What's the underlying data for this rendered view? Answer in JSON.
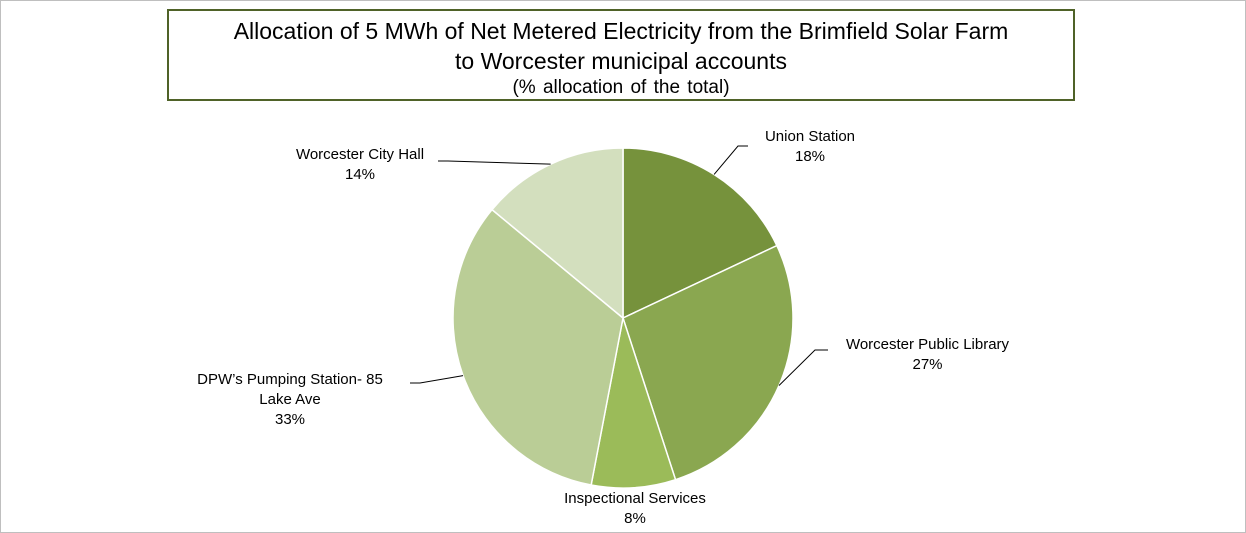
{
  "chart_data": {
    "type": "pie",
    "title_lines": [
      "Allocation of 5 MWh of Net Metered Electricity from the Brimfield Solar Farm",
      "to Worcester municipal accounts"
    ],
    "subtitle": "(% allocation of the total)",
    "slices": [
      {
        "label": "Union Station",
        "value": 18,
        "value_label": "18%",
        "color": "#76923c"
      },
      {
        "label": "Worcester Public Library",
        "value": 27,
        "value_label": "27%",
        "color": "#8aa750"
      },
      {
        "label": "Inspectional Services",
        "value": 8,
        "value_label": "8%",
        "color": "#9bbb59"
      },
      {
        "label": "DPW’s Pumping Station- 85 Lake Ave",
        "label_lines": [
          "DPW’s Pumping Station- 85",
          "Lake Ave"
        ],
        "value": 33,
        "value_label": "33%",
        "color": "#bacd96"
      },
      {
        "label": "Worcester City Hall",
        "value": 14,
        "value_label": "14%",
        "color": "#d3dfbe"
      }
    ]
  }
}
